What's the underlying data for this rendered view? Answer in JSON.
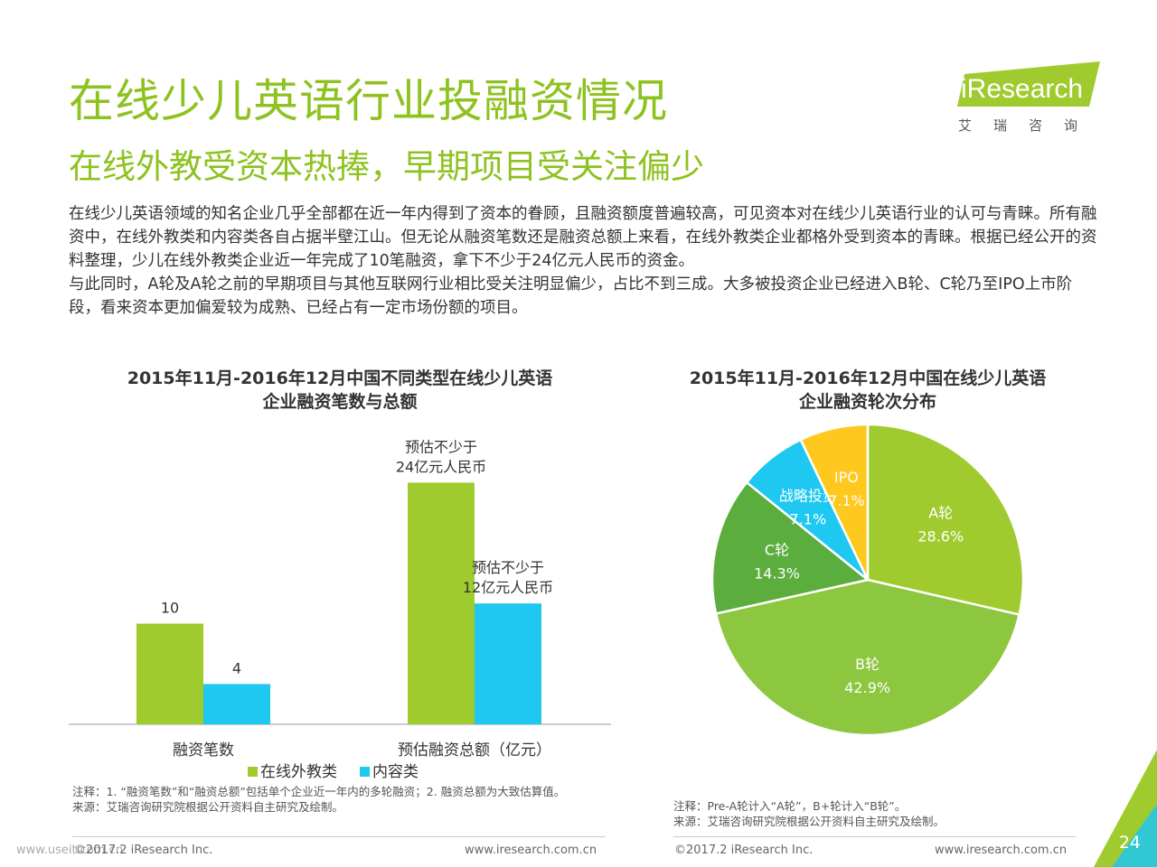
{
  "header": {
    "title": "在线少儿英语行业投融资情况",
    "subtitle": "在线外教受资本热捧，早期项目受关注偏少"
  },
  "logo": {
    "brand": "iResearch",
    "brand_cn": "艾瑞咨询"
  },
  "body": {
    "paragraph1": "在线少儿英语领域的知名企业几乎全部都在近一年内得到了资本的眷顾，且融资额度普遍较高，可见资本对在线少儿英语行业的认可与青睐。所有融资中，在线外教类和内容类各自占据半壁江山。但无论从融资笔数还是融资总额上来看，在线外教类企业都格外受到资本的青睐。根据已经公开的资料整理，少儿在线外教类企业近一年完成了10笔融资，拿下不少于24亿元人民币的资金。",
    "paragraph2": "与此同时，A轮及A轮之前的早期项目与其他互联网行业相比受关注明显偏少，占比不到三成。大多被投资企业已经进入B轮、C轮乃至IPO上市阶段，看来资本更加偏爱较为成熟、已经占有一定市场份额的项目。"
  },
  "chart_data": [
    {
      "type": "bar",
      "title_line1": "2015年11月-2016年12月中国不同类型在线少儿英语",
      "title_line2": "企业融资笔数与总额",
      "categories": [
        "融资笔数",
        "预估融资总额（亿元）"
      ],
      "series": [
        {
          "name": "在线外教类",
          "color": "#9FCB2E",
          "values": [
            10,
            24
          ]
        },
        {
          "name": "内容类",
          "color": "#1EC8F0",
          "values": [
            4,
            12
          ]
        }
      ],
      "data_labels": [
        [
          "10",
          "预估不少于\n24亿元人民币"
        ],
        [
          "4",
          "预估不少于\n12亿元人民币"
        ]
      ],
      "legend": "bottom",
      "grid": false
    },
    {
      "type": "pie",
      "title_line1": "2015年11月-2016年12月中国在线少儿英语",
      "title_line2": "企业融资轮次分布",
      "slices": [
        {
          "label": "A轮",
          "value": 28.6,
          "pct": "28.6%",
          "color": "#9FCB2E"
        },
        {
          "label": "B轮",
          "value": 42.9,
          "pct": "42.9%",
          "color": "#8DC63F"
        },
        {
          "label": "C轮",
          "value": 14.3,
          "pct": "14.3%",
          "color": "#5BAE3D"
        },
        {
          "label": "战略投资",
          "value": 7.1,
          "pct": "7.1%",
          "color": "#1EC8F0"
        },
        {
          "label": "IPO",
          "value": 7.1,
          "pct": "7.1%",
          "color": "#FFC81E"
        }
      ]
    }
  ],
  "notes": {
    "left_note1": "注释：1. “融资笔数”和“融资总额”包括单个企业近一年内的多轮融资；2. 融资总额为大致估算值。",
    "left_source": "来源：艾瑞咨询研究院根据公开资料自主研究及绘制。",
    "right_note1": "注释：Pre-A轮计入“A轮”，B+轮计入“B轮”。",
    "right_source": "来源：艾瑞咨询研究院根据公开资料自主研究及绘制。"
  },
  "footer": {
    "watermark": "www.useit.com.cn",
    "copyright": "©2017.2 iResearch Inc.",
    "site": "www.iresearch.com.cn",
    "page_number": "24"
  }
}
